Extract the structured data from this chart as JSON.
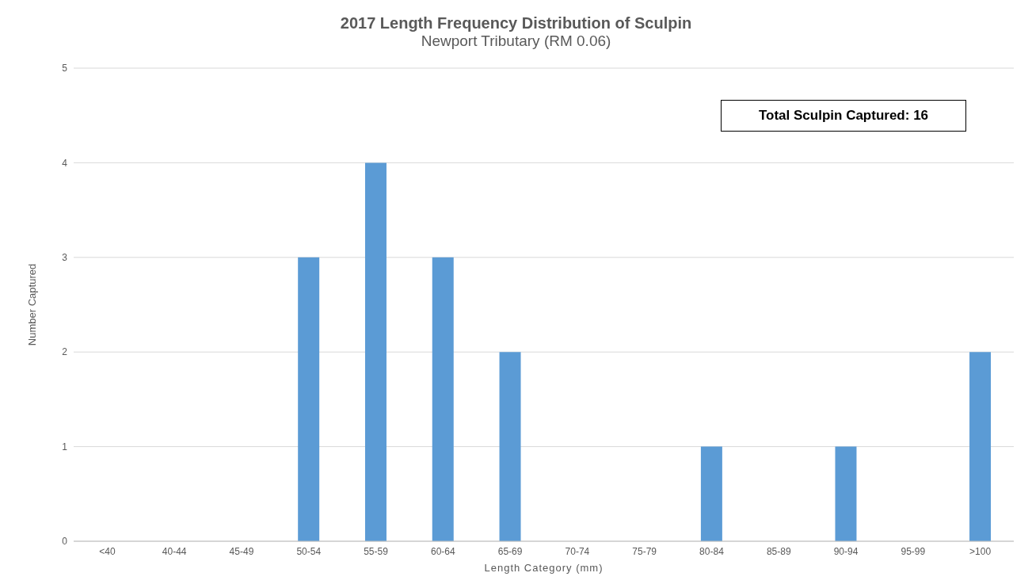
{
  "chart_data": {
    "type": "bar",
    "title": "2017 Length Frequency Distribution of Sculpin",
    "subtitle": "Newport Tributary (RM 0.06)",
    "xlabel": "Length Category (mm)",
    "ylabel": "Number Captured",
    "categories": [
      "<40",
      "40-44",
      "45-49",
      "50-54",
      "55-59",
      "60-64",
      "65-69",
      "70-74",
      "75-79",
      "80-84",
      "85-89",
      "90-94",
      "95-99",
      ">100"
    ],
    "values": [
      0,
      0,
      0,
      3,
      4,
      3,
      2,
      0,
      0,
      1,
      0,
      1,
      0,
      2
    ],
    "color": "#5b9bd5",
    "ylim": [
      0,
      5
    ],
    "yticks": [
      0,
      1,
      2,
      3,
      4,
      5
    ],
    "grid": "y",
    "legend": false,
    "annotations": [
      "Total Sculpin Captured: 16"
    ]
  }
}
